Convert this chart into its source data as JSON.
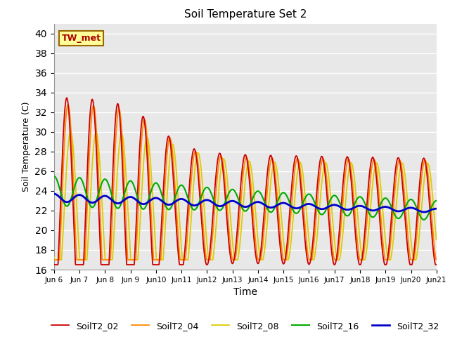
{
  "title": "Soil Temperature Set 2",
  "xlabel": "Time",
  "ylabel": "Soil Temperature (C)",
  "ylim": [
    16,
    41
  ],
  "yticks": [
    16,
    18,
    20,
    22,
    24,
    26,
    28,
    30,
    32,
    34,
    36,
    38,
    40
  ],
  "fig_bg_color": "#ffffff",
  "plot_bg_color": "#e8e8e8",
  "annotation_text": "TW_met",
  "annotation_bg": "#ffff99",
  "annotation_border": "#996600",
  "legend_labels": [
    "SoilT2_02",
    "SoilT2_04",
    "SoilT2_08",
    "SoilT2_16",
    "SoilT2_32"
  ],
  "colors": [
    "#cc0000",
    "#ff8800",
    "#ddcc00",
    "#00aa00",
    "#0000cc"
  ],
  "line_widths": [
    1.3,
    1.3,
    1.3,
    1.5,
    2.0
  ],
  "n_days": 15,
  "pts_per_day": 144
}
